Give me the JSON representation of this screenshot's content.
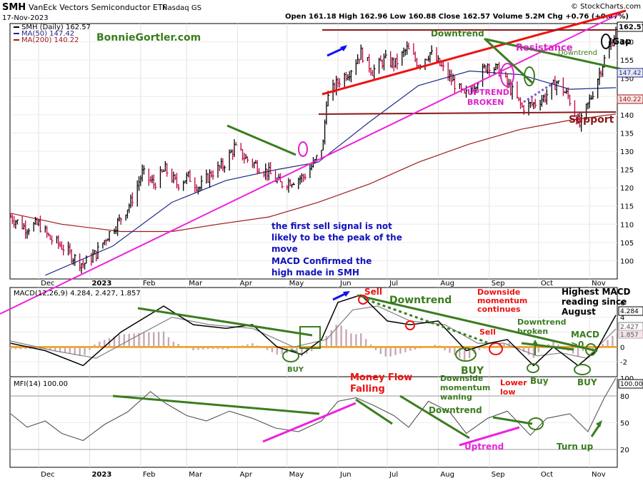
{
  "header": {
    "symbol": "SMH",
    "name": "VanEck Vectors Semiconductor ETF",
    "exchange": "Nasdaq GS",
    "date": "17-Nov-2023",
    "quote": "Open 161.18  High 162.96  Low 160.88  Close 162.57  Volume 5.2M  Chg +0.76 (+0.47%)",
    "credit": "© StockCharts.com"
  },
  "colors": {
    "price_up": "#000000",
    "price_down": "#c0003c",
    "ma50": "#1f2a8a",
    "ma200": "#a01818",
    "macd_line": "#000000",
    "signal_line": "#808080",
    "histogram": "#c9a7b3",
    "zero_line": "#f59a00",
    "mfi_line": "#555555",
    "trendline_red": "#ee1111",
    "trendline_magenta": "#ee22dd",
    "trendline_green": "#3a7d1e",
    "support_line": "#8b1a1a",
    "annotation_blue": "#1111bb",
    "annotation_red": "#ee1111",
    "annotation_green": "#3a7d1e",
    "annotation_magenta": "#dd22cc"
  },
  "chart_data": [
    {
      "type": "line",
      "panel": "price",
      "legend": [
        "SMH (Daily) 162.57",
        "MA(50) 147.42",
        "MA(200) 140.22"
      ],
      "x_ticks": [
        "Dec",
        "2023",
        "Feb",
        "Mar",
        "Apr",
        "May",
        "Jun",
        "Jul",
        "Aug",
        "Sep",
        "Oct",
        "Nov"
      ],
      "ylim": [
        95,
        165
      ],
      "y_ticks": [
        100,
        105,
        110,
        115,
        120,
        125,
        130,
        135,
        140,
        145,
        150,
        155,
        160
      ],
      "value_tags": [
        "162.57",
        "147.42",
        "140.22"
      ],
      "price_path": [
        [
          "2022-11-14",
          112
        ],
        [
          "2022-11-23",
          109
        ],
        [
          "2022-12-01",
          110
        ],
        [
          "2022-12-08",
          106
        ],
        [
          "2022-12-15",
          104
        ],
        [
          "2022-12-22",
          101
        ],
        [
          "2022-12-28",
          99
        ],
        [
          "2023-01-05",
          102
        ],
        [
          "2023-01-12",
          107
        ],
        [
          "2023-01-19",
          111
        ],
        [
          "2023-01-26",
          116
        ],
        [
          "2023-02-02",
          124
        ],
        [
          "2023-02-09",
          121
        ],
        [
          "2023-02-16",
          125
        ],
        [
          "2023-02-23",
          121
        ],
        [
          "2023-03-02",
          123
        ],
        [
          "2023-03-09",
          120
        ],
        [
          "2023-03-16",
          124
        ],
        [
          "2023-03-23",
          126
        ],
        [
          "2023-03-30",
          131
        ],
        [
          "2023-04-06",
          128
        ],
        [
          "2023-04-13",
          126
        ],
        [
          "2023-04-20",
          124
        ],
        [
          "2023-04-27",
          121
        ],
        [
          "2023-05-04",
          122
        ],
        [
          "2023-05-11",
          123
        ],
        [
          "2023-05-18",
          127
        ],
        [
          "2023-05-23",
          132
        ],
        [
          "2023-05-25",
          144
        ],
        [
          "2023-06-01",
          149
        ],
        [
          "2023-06-08",
          152
        ],
        [
          "2023-06-15",
          157
        ],
        [
          "2023-06-22",
          152
        ],
        [
          "2023-06-29",
          155
        ],
        [
          "2023-07-06",
          154
        ],
        [
          "2023-07-13",
          158
        ],
        [
          "2023-07-20",
          154
        ],
        [
          "2023-07-27",
          157
        ],
        [
          "2023-08-03",
          153
        ],
        [
          "2023-08-10",
          149
        ],
        [
          "2023-08-17",
          145
        ],
        [
          "2023-08-24",
          149
        ],
        [
          "2023-08-31",
          154
        ],
        [
          "2023-09-07",
          152
        ],
        [
          "2023-09-14",
          147
        ],
        [
          "2023-09-21",
          142
        ],
        [
          "2023-09-28",
          143
        ],
        [
          "2023-10-05",
          145
        ],
        [
          "2023-10-12",
          149
        ],
        [
          "2023-10-19",
          145
        ],
        [
          "2023-10-26",
          137
        ],
        [
          "2023-11-02",
          145
        ],
        [
          "2023-11-09",
          154
        ],
        [
          "2023-11-17",
          162.57
        ]
      ],
      "ma50_path": [
        [
          "2022-12-05",
          96
        ],
        [
          "2023-01-15",
          104
        ],
        [
          "2023-02-20",
          116
        ],
        [
          "2023-03-25",
          122
        ],
        [
          "2023-04-25",
          125
        ],
        [
          "2023-05-20",
          127
        ],
        [
          "2023-06-20",
          138
        ],
        [
          "2023-07-20",
          148
        ],
        [
          "2023-08-20",
          152
        ],
        [
          "2023-09-20",
          151
        ],
        [
          "2023-10-20",
          147
        ],
        [
          "2023-11-17",
          147.42
        ]
      ],
      "ma200_path": [
        [
          "2022-11-14",
          113
        ],
        [
          "2022-12-15",
          110
        ],
        [
          "2023-01-20",
          108
        ],
        [
          "2023-02-20",
          108
        ],
        [
          "2023-03-20",
          110
        ],
        [
          "2023-04-20",
          112
        ],
        [
          "2023-05-20",
          116
        ],
        [
          "2023-06-20",
          121
        ],
        [
          "2023-07-20",
          127
        ],
        [
          "2023-08-20",
          132
        ],
        [
          "2023-09-20",
          136
        ],
        [
          "2023-10-20",
          138.5
        ],
        [
          "2023-11-17",
          140.22
        ]
      ]
    },
    {
      "type": "line",
      "panel": "macd",
      "legend": "MACD(12,26,9) 4.284, 2.427, 1.857",
      "ylim": [
        -4,
        8
      ],
      "y_ticks": [
        -2,
        0,
        2,
        4,
        6
      ],
      "value_tags": [
        "4.284",
        "2.427",
        "1.857"
      ],
      "zero_line": 0,
      "macd_path": [
        [
          "2022-11-14",
          0.5
        ],
        [
          "2022-12-05",
          -0.5
        ],
        [
          "2022-12-28",
          -2.5
        ],
        [
          "2023-01-20",
          2
        ],
        [
          "2023-02-15",
          5.5
        ],
        [
          "2023-03-05",
          3
        ],
        [
          "2023-03-25",
          2.5
        ],
        [
          "2023-04-10",
          3
        ],
        [
          "2023-04-25",
          0
        ],
        [
          "2023-05-10",
          -1
        ],
        [
          "2023-05-22",
          1
        ],
        [
          "2023-06-01",
          6
        ],
        [
          "2023-06-15",
          7
        ],
        [
          "2023-07-01",
          3.5
        ],
        [
          "2023-07-15",
          3
        ],
        [
          "2023-08-01",
          3.5
        ],
        [
          "2023-08-18",
          -0.5
        ],
        [
          "2023-09-01",
          0.5
        ],
        [
          "2023-09-12",
          1
        ],
        [
          "2023-09-28",
          -2.5
        ],
        [
          "2023-10-10",
          0
        ],
        [
          "2023-10-25",
          -2.5
        ],
        [
          "2023-11-05",
          -0.5
        ],
        [
          "2023-11-17",
          4.284
        ]
      ],
      "signal_path": [
        [
          "2022-11-14",
          0.8
        ],
        [
          "2022-12-10",
          -0.5
        ],
        [
          "2023-01-05",
          -1.5
        ],
        [
          "2023-01-30",
          1.5
        ],
        [
          "2023-02-20",
          4
        ],
        [
          "2023-03-15",
          3
        ],
        [
          "2023-04-10",
          2.5
        ],
        [
          "2023-05-05",
          0
        ],
        [
          "2023-05-25",
          1
        ],
        [
          "2023-06-10",
          5
        ],
        [
          "2023-06-25",
          5.5
        ],
        [
          "2023-07-15",
          3.5
        ],
        [
          "2023-08-05",
          3
        ],
        [
          "2023-08-25",
          0.5
        ],
        [
          "2023-09-10",
          0.5
        ],
        [
          "2023-09-30",
          -1.2
        ],
        [
          "2023-10-15",
          -0.8
        ],
        [
          "2023-10-30",
          -1.5
        ],
        [
          "2023-11-17",
          2.427
        ]
      ]
    },
    {
      "type": "line",
      "panel": "mfi",
      "legend": "MFI(14) 100.00",
      "ylim": [
        0,
        100
      ],
      "y_ticks": [
        20,
        50,
        80,
        100
      ],
      "reference_lines": [
        20,
        80
      ],
      "value_tags": [
        "100.00"
      ],
      "mfi_path": [
        [
          "2022-11-14",
          60
        ],
        [
          "2022-11-24",
          45
        ],
        [
          "2022-12-05",
          52
        ],
        [
          "2022-12-15",
          38
        ],
        [
          "2022-12-28",
          30
        ],
        [
          "2023-01-10",
          48
        ],
        [
          "2023-01-24",
          62
        ],
        [
          "2023-02-07",
          85
        ],
        [
          "2023-02-16",
          72
        ],
        [
          "2023-03-01",
          58
        ],
        [
          "2023-03-13",
          52
        ],
        [
          "2023-03-27",
          63
        ],
        [
          "2023-04-10",
          55
        ],
        [
          "2023-04-24",
          44
        ],
        [
          "2023-05-08",
          40
        ],
        [
          "2023-05-22",
          52
        ],
        [
          "2023-06-01",
          74
        ],
        [
          "2023-06-12",
          78
        ],
        [
          "2023-06-22",
          70
        ],
        [
          "2023-07-05",
          58
        ],
        [
          "2023-07-14",
          45
        ],
        [
          "2023-07-26",
          74
        ],
        [
          "2023-08-08",
          62
        ],
        [
          "2023-08-18",
          38
        ],
        [
          "2023-08-31",
          55
        ],
        [
          "2023-09-12",
          63
        ],
        [
          "2023-09-26",
          36
        ],
        [
          "2023-10-06",
          55
        ],
        [
          "2023-10-20",
          60
        ],
        [
          "2023-10-31",
          40
        ],
        [
          "2023-11-10",
          78
        ],
        [
          "2023-11-17",
          100
        ]
      ]
    }
  ],
  "annotations": {
    "watermark": "BonnieGortler.com",
    "note_sell": "the first sell signal is not likely to be the peak of the move",
    "note_macd": "MACD Confirmed the high made in SMH",
    "downtrend_price": "Downtrend",
    "resistance": "Resistance",
    "downtrend_small": "Downtrend",
    "gap": "Gap",
    "uptrend_broken": "UPTREND BROKEN",
    "support": "Support",
    "sell": "Sell",
    "downtrend_macd": "Downtrend",
    "downside_continues": "Downside momentum continues",
    "highest_macd": "Highest MACD reading since August",
    "sell2": "Sell",
    "downtrend_broken": "Downtrend broken",
    "macd_gt0": "MACD >0",
    "buy1": "BUY",
    "buy2": "BUY",
    "buy3": "Buy",
    "buy4": "BUY",
    "downside_waning": "Downside momentum waning",
    "lower_low": "Lower low",
    "money_flow": "Money Flow Falling",
    "downtrend_mfi": "Downtrend",
    "uptrend_mfi": "Uptrend",
    "turn_up": "Turn up"
  }
}
